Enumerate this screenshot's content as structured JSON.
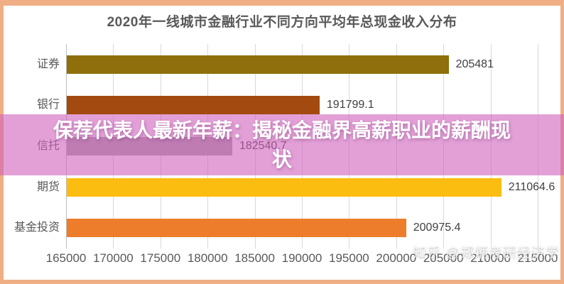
{
  "frame": {
    "border_color": "#efae83",
    "background": "#ffffff"
  },
  "overlay_banner": {
    "headline": "保荐代表人最新年薪：揭秘金融界高薪职业的薪酬现状",
    "background_rgba": "rgba(206,96,188,0.6)",
    "text_color": "#ffffff"
  },
  "watermark": {
    "text": "知乎 @郑炳考研经济学"
  },
  "chart_data": {
    "type": "bar",
    "orientation": "horizontal",
    "title": "2020年一线城市金融行业不同方向平均年总现金收入分布",
    "title_color": "#595959",
    "categories": [
      "证券",
      "银行",
      "信托",
      "期货",
      "基金投资"
    ],
    "values": [
      205481,
      191799.1,
      182540.7,
      211064.6,
      200975.4
    ],
    "value_labels": [
      "205481",
      "191799.1",
      "182540.7",
      "211064.6",
      "200975.4"
    ],
    "bar_colors": [
      "#8e6f0c",
      "#a34a10",
      "#a6a6a6",
      "#fcbd11",
      "#ed7d2b"
    ],
    "xlim": [
      165000,
      215000
    ],
    "xticks": [
      165000,
      170000,
      175000,
      180000,
      185000,
      190000,
      195000,
      200000,
      205000,
      210000,
      215000
    ],
    "grid": true,
    "gridline_color": "#d9d9d9",
    "axis_line_color": "#bfbfbf",
    "category_label_color": "#595959",
    "value_label_color": "#404040",
    "tick_label_color": "#595959",
    "legend": "none"
  }
}
